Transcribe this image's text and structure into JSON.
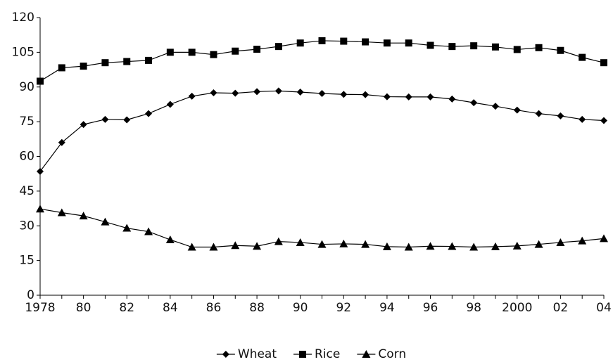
{
  "chart_data": {
    "type": "line",
    "categories": [
      "1978",
      null,
      "80",
      null,
      "82",
      null,
      "84",
      null,
      "86",
      null,
      "88",
      null,
      "90",
      null,
      "92",
      null,
      "94",
      null,
      "96",
      null,
      "98",
      null,
      "2000",
      null,
      "02",
      null,
      "04"
    ],
    "series": [
      {
        "name": "Wheat",
        "color": "#000000",
        "marker": "diamond",
        "values": [
          53.5,
          66,
          73.8,
          76,
          75.8,
          78.5,
          82.5,
          86,
          87.5,
          87.3,
          88,
          88.3,
          87.8,
          87.2,
          86.8,
          86.7,
          85.8,
          85.7,
          85.7,
          84.8,
          83.2,
          81.7,
          80,
          78.5,
          77.5,
          76,
          75.5
        ]
      },
      {
        "name": "Rice",
        "color": "#000000",
        "marker": "square",
        "values": [
          92.5,
          98.3,
          99,
          100.5,
          101,
          101.5,
          105,
          105,
          104,
          105.5,
          106.3,
          107.5,
          109,
          110,
          109.8,
          109.5,
          109,
          109,
          108,
          107.5,
          107.8,
          107.3,
          106.2,
          107,
          105.8,
          102.8,
          100.5
        ]
      },
      {
        "name": "Corn",
        "color": "#000000",
        "marker": "triangle",
        "values": [
          37.3,
          35.7,
          34.3,
          31.7,
          29,
          27.5,
          24,
          20.8,
          20.8,
          21.5,
          21.2,
          23.2,
          22.8,
          22,
          22.2,
          22,
          21,
          20.8,
          21.2,
          21.1,
          20.8,
          21,
          21.3,
          22,
          22.8,
          23.5,
          24.5
        ]
      }
    ],
    "ylim": [
      0,
      120
    ],
    "yticks": [
      0,
      15,
      30,
      45,
      60,
      75,
      90,
      105,
      120
    ],
    "grid": false,
    "legend": "bottom"
  }
}
